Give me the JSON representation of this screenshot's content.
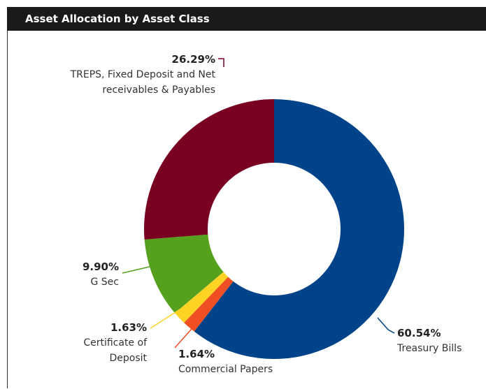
{
  "chart_data": {
    "type": "donut",
    "title": "Asset Allocation by Asset Class",
    "categories": [
      "Treasury Bills",
      "Commercial Papers",
      "Certificate of Deposit",
      "G Sec",
      "TREPS, Fixed Deposit and Net receivables & Payables"
    ],
    "values": [
      60.54,
      1.64,
      1.63,
      9.9,
      26.29
    ],
    "value_labels": [
      "60.54%",
      "1.64%",
      "1.63%",
      "9.90%",
      "26.29%"
    ],
    "colors": [
      "#00438a",
      "#f04e23",
      "#ffd323",
      "#55a11d",
      "#7a0021"
    ]
  }
}
